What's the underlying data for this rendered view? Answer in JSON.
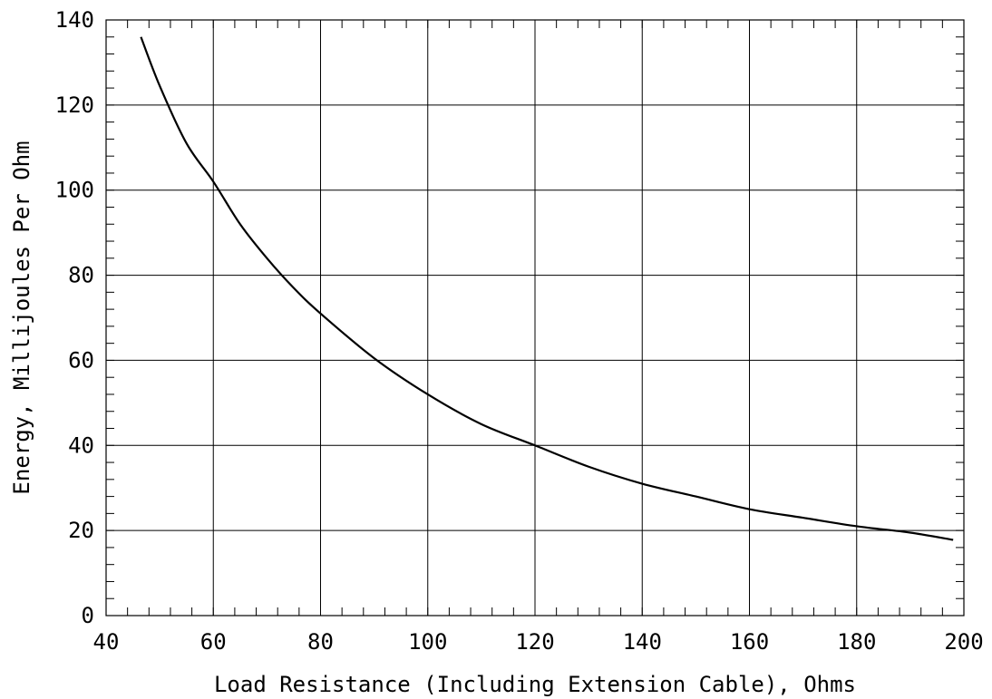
{
  "chart_data": {
    "type": "line",
    "title": "",
    "xlabel": "Load Resistance (Including Extension Cable), Ohms",
    "ylabel": "Energy, Millijoules Per Ohm",
    "xlim": [
      40,
      200
    ],
    "ylim": [
      0,
      140
    ],
    "x_ticks": [
      "40",
      "60",
      "80",
      "100",
      "120",
      "140",
      "160",
      "180",
      "200"
    ],
    "y_ticks": [
      "0",
      "20",
      "40",
      "60",
      "80",
      "100",
      "120",
      "140"
    ],
    "grid": true,
    "series": [
      {
        "x": [
          46.5,
          50,
          55,
          60,
          65,
          70,
          75,
          80,
          90,
          100,
          110,
          120,
          130,
          140,
          150,
          160,
          170,
          180,
          190,
          198
        ],
        "y": [
          136,
          124.5,
          111,
          102,
          92,
          84,
          77,
          71,
          60.5,
          52,
          45,
          40,
          35,
          31,
          28,
          25,
          23,
          21,
          19.5,
          17.8
        ]
      }
    ]
  }
}
